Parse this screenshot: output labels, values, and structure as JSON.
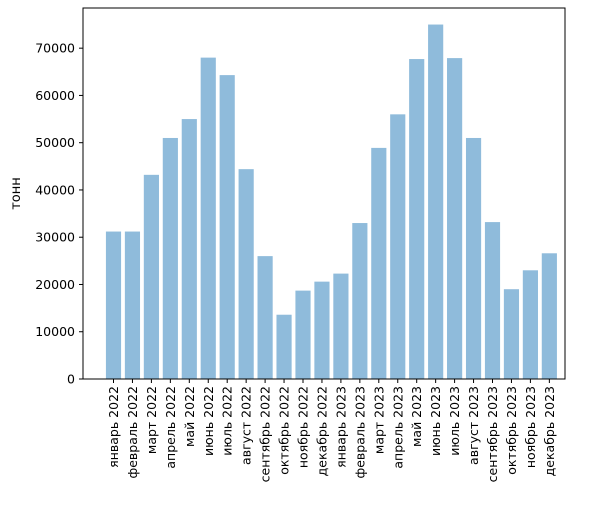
{
  "chart_data": {
    "type": "bar",
    "title": "",
    "xlabel": "",
    "ylabel": "тонн",
    "ylim": [
      0,
      78500
    ],
    "yticks": [
      0,
      10000,
      20000,
      30000,
      40000,
      50000,
      60000,
      70000
    ],
    "grid": false,
    "bar_color": "#8fbbdb",
    "categories": [
      "январь 2022",
      "февраль 2022",
      "март 2022",
      "апрель 2022",
      "май 2022",
      "июнь 2022",
      "июль 2022",
      "август 2022",
      "сентябрь 2022",
      "октябрь 2022",
      "ноябрь 2022",
      "декабрь 2022",
      "январь 2023",
      "февраль 2023",
      "март 2023",
      "апрель 2023",
      "май 2023",
      "июнь 2023",
      "июль 2023",
      "август 2023",
      "сентябрь 2023",
      "октябрь 2023",
      "ноябрь 2023",
      "декабрь 2023"
    ],
    "values": [
      31200,
      31200,
      43200,
      51000,
      55000,
      68000,
      64300,
      44400,
      26000,
      13600,
      18700,
      20600,
      22300,
      33000,
      48900,
      56000,
      67700,
      75000,
      67900,
      51000,
      33200,
      19000,
      23000,
      26600
    ]
  }
}
